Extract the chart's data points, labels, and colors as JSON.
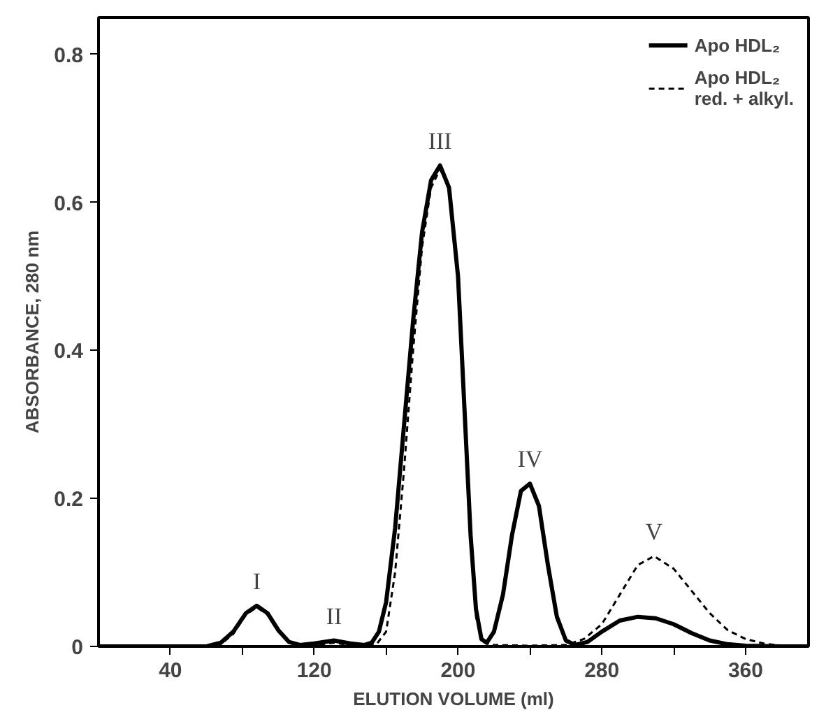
{
  "chart_data": {
    "type": "line",
    "xlabel": "ELUTION VOLUME (ml)",
    "ylabel": "ABSORBANCE, 280 nm",
    "xlim": [
      0,
      395
    ],
    "ylim": [
      0,
      0.85
    ],
    "xticks": [
      40,
      {
        "value": 80,
        "label": null
      },
      120,
      {
        "value": 160,
        "label": null
      },
      200,
      {
        "value": 240,
        "label": null
      },
      280,
      {
        "value": 320,
        "label": null
      },
      360
    ],
    "yticks": [
      0,
      0.2,
      0.4,
      0.6,
      0.8
    ],
    "grid": false,
    "legend": "top right",
    "marker": "none",
    "series": [
      {
        "name": "Apo HDL₂",
        "color": "#000000",
        "line_style": "solid",
        "x": [
          0,
          40,
          60,
          68,
          75,
          82,
          88,
          94,
          100,
          106,
          112,
          120,
          131,
          140,
          148,
          152,
          156,
          160,
          165,
          170,
          175,
          180,
          185,
          190,
          195,
          200,
          204,
          207,
          210,
          213,
          216,
          220,
          225,
          230,
          235,
          240,
          245,
          250,
          255,
          260,
          265,
          272,
          280,
          290,
          300,
          310,
          320,
          330,
          340,
          350,
          360,
          380,
          395
        ],
        "values": [
          0,
          0,
          0,
          0.005,
          0.02,
          0.045,
          0.055,
          0.045,
          0.022,
          0.006,
          0.002,
          0.004,
          0.008,
          0.004,
          0.002,
          0.005,
          0.02,
          0.06,
          0.16,
          0.3,
          0.44,
          0.56,
          0.63,
          0.65,
          0.62,
          0.5,
          0.3,
          0.15,
          0.05,
          0.01,
          0.005,
          0.02,
          0.07,
          0.15,
          0.21,
          0.22,
          0.19,
          0.11,
          0.04,
          0.008,
          0.002,
          0.006,
          0.02,
          0.035,
          0.04,
          0.038,
          0.03,
          0.018,
          0.008,
          0.003,
          0.001,
          0,
          0
        ]
      },
      {
        "name": "Apo HDL₂\nred. + alkyl.",
        "color": "#000000",
        "line_style": "dashed",
        "x": [
          0,
          40,
          60,
          68,
          75,
          82,
          88,
          94,
          100,
          106,
          112,
          120,
          131,
          140,
          150,
          155,
          160,
          165,
          170,
          175,
          180,
          185,
          190,
          195,
          200,
          204,
          207,
          210,
          213,
          218,
          240,
          260,
          270,
          280,
          290,
          300,
          309,
          320,
          330,
          340,
          350,
          360,
          370,
          380,
          395
        ],
        "values": [
          0,
          0,
          0,
          0.003,
          0.017,
          0.043,
          0.053,
          0.043,
          0.02,
          0.005,
          0.001,
          0.002,
          0.005,
          0.002,
          0.001,
          0.004,
          0.02,
          0.1,
          0.24,
          0.4,
          0.54,
          0.62,
          0.645,
          0.62,
          0.5,
          0.3,
          0.14,
          0.04,
          0.008,
          0.002,
          0.001,
          0.002,
          0.01,
          0.03,
          0.07,
          0.11,
          0.122,
          0.105,
          0.075,
          0.045,
          0.022,
          0.01,
          0.004,
          0.001,
          0
        ]
      }
    ],
    "annotations": [
      {
        "text": "I",
        "x": 88,
        "y": 0.055
      },
      {
        "text": "II",
        "x": 131,
        "y": 0.008
      },
      {
        "text": "III",
        "x": 190,
        "y": 0.65
      },
      {
        "text": "IV",
        "x": 240,
        "y": 0.22
      },
      {
        "text": "V",
        "x": 309,
        "y": 0.122
      }
    ]
  }
}
